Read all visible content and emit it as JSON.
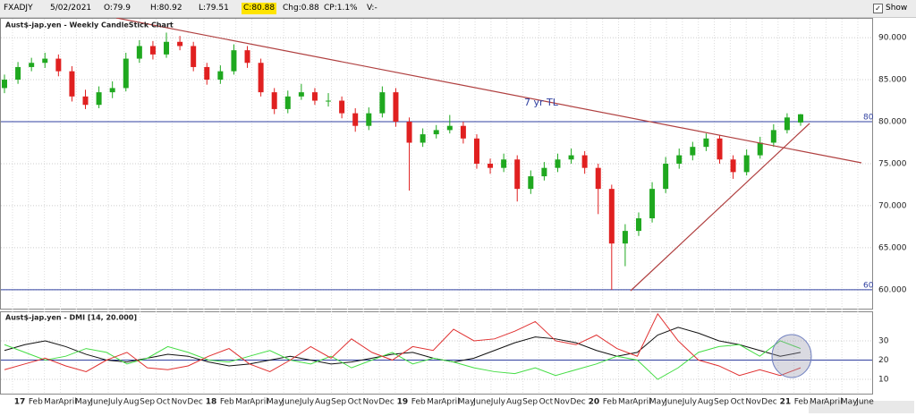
{
  "toolbar": {
    "symbol": "FXADJY",
    "date": "5/02/2021",
    "open": "O:79.9",
    "high": "H:80.92",
    "low": "L:79.51",
    "close": "C:80.88",
    "change": "Chg:0.88",
    "change_pct": "CP:1.1%",
    "volume": "V:-",
    "show_last": "Show Last"
  },
  "chart_data": [
    {
      "type": "candlestick",
      "title": "Aust$-jap.yen - Weekly CandleStick Chart",
      "annotation": "7 yr TL",
      "ylim": [
        57.75,
        92.35
      ],
      "yticks": [
        60,
        65,
        70,
        75,
        80,
        85,
        90
      ],
      "yticklabels": [
        "60.000",
        "65.000",
        "70.000",
        "75.000",
        "80.000",
        "85.000",
        "90.000"
      ],
      "levels": [
        80,
        60
      ],
      "up_color": "#1fa81f",
      "down_color": "#e02020",
      "level_color": "#3040a0",
      "candles": [
        [
          84.0,
          85.6,
          83.4,
          85.0
        ],
        [
          85.0,
          87.1,
          84.5,
          86.5
        ],
        [
          86.5,
          87.6,
          86.0,
          87.0
        ],
        [
          87.0,
          88.2,
          86.4,
          87.5
        ],
        [
          87.5,
          88.0,
          85.4,
          86.0
        ],
        [
          86.0,
          86.6,
          82.4,
          83.0
        ],
        [
          83.0,
          83.8,
          81.5,
          82.0
        ],
        [
          82.0,
          84.2,
          81.6,
          83.5
        ],
        [
          83.5,
          84.8,
          82.8,
          84.0
        ],
        [
          84.0,
          88.2,
          83.6,
          87.5
        ],
        [
          87.5,
          89.7,
          87.0,
          89.0
        ],
        [
          89.0,
          89.6,
          87.4,
          88.0
        ],
        [
          88.0,
          90.6,
          87.6,
          89.5
        ],
        [
          89.5,
          90.2,
          88.5,
          89.0
        ],
        [
          89.0,
          89.5,
          86.0,
          86.5
        ],
        [
          86.5,
          87.0,
          84.4,
          85.0
        ],
        [
          85.0,
          86.7,
          84.5,
          86.0
        ],
        [
          86.0,
          89.2,
          85.6,
          88.5
        ],
        [
          88.5,
          89.0,
          86.4,
          87.0
        ],
        [
          87.0,
          87.5,
          83.0,
          83.5
        ],
        [
          83.5,
          84.0,
          80.9,
          81.5
        ],
        [
          81.5,
          83.7,
          81.0,
          83.0
        ],
        [
          83.0,
          84.5,
          82.6,
          83.5
        ],
        [
          83.5,
          84.0,
          82.0,
          82.5
        ],
        [
          82.5,
          83.4,
          81.8,
          82.5
        ],
        [
          82.5,
          83.0,
          80.4,
          81.0
        ],
        [
          81.0,
          81.6,
          78.8,
          79.5
        ],
        [
          79.5,
          81.7,
          79.0,
          81.0
        ],
        [
          81.0,
          84.2,
          80.5,
          83.5
        ],
        [
          83.5,
          84.0,
          79.4,
          80.0
        ],
        [
          80.0,
          80.5,
          71.8,
          77.5
        ],
        [
          77.5,
          79.2,
          77.0,
          78.5
        ],
        [
          78.5,
          79.6,
          78.0,
          79.0
        ],
        [
          79.0,
          80.8,
          78.6,
          79.5
        ],
        [
          79.5,
          80.0,
          77.4,
          78.0
        ],
        [
          78.0,
          78.5,
          74.4,
          75.0
        ],
        [
          75.0,
          75.6,
          73.8,
          74.5
        ],
        [
          74.5,
          76.2,
          74.0,
          75.5
        ],
        [
          75.5,
          76.0,
          70.5,
          72.0
        ],
        [
          72.0,
          74.2,
          71.4,
          73.5
        ],
        [
          73.5,
          75.2,
          73.0,
          74.5
        ],
        [
          74.5,
          76.2,
          74.0,
          75.5
        ],
        [
          75.5,
          76.8,
          75.0,
          76.0
        ],
        [
          76.0,
          76.5,
          73.8,
          74.5
        ],
        [
          74.5,
          75.0,
          69.0,
          72.0
        ],
        [
          72.0,
          72.5,
          60.0,
          65.5
        ],
        [
          65.5,
          67.8,
          62.8,
          67.0
        ],
        [
          67.0,
          69.2,
          66.4,
          68.5
        ],
        [
          68.5,
          72.8,
          68.0,
          72.0
        ],
        [
          72.0,
          75.8,
          71.5,
          75.0
        ],
        [
          75.0,
          76.8,
          74.4,
          76.0
        ],
        [
          76.0,
          77.6,
          75.4,
          77.0
        ],
        [
          77.0,
          78.6,
          76.5,
          78.0
        ],
        [
          78.0,
          78.4,
          75.0,
          75.5
        ],
        [
          75.5,
          76.0,
          73.2,
          74.0
        ],
        [
          74.0,
          76.7,
          73.6,
          76.0
        ],
        [
          76.0,
          78.2,
          75.6,
          77.5
        ],
        [
          77.5,
          79.7,
          77.0,
          79.0
        ],
        [
          79.0,
          81.0,
          78.6,
          80.5
        ],
        [
          79.9,
          80.92,
          79.51,
          80.88
        ]
      ]
    },
    {
      "type": "line",
      "title": "Aust$-jap.yen - DMI [14, 20.000]",
      "ylim": [
        2.6,
        45.3
      ],
      "yticks": [
        10,
        20,
        30
      ],
      "level": 20,
      "series": [
        {
          "color": "#111111",
          "values": [
            25,
            28,
            30,
            27,
            23,
            20,
            19,
            21,
            23,
            22,
            19,
            17,
            18,
            20,
            22,
            20,
            18,
            19,
            21,
            23,
            24,
            21,
            19,
            21,
            25,
            29,
            32,
            31,
            29,
            25,
            22,
            24,
            33,
            37,
            34,
            30,
            28,
            25,
            22,
            24
          ]
        },
        {
          "color": "#44dd44",
          "values": [
            28,
            24,
            20,
            22,
            26,
            24,
            18,
            21,
            27,
            24,
            20,
            19,
            22,
            25,
            20,
            18,
            22,
            16,
            20,
            24,
            18,
            21,
            19,
            16,
            14,
            13,
            16,
            12,
            15,
            18,
            22,
            20,
            10,
            16,
            24,
            27,
            28,
            22,
            30,
            26
          ]
        },
        {
          "color": "#e03030",
          "values": [
            15,
            18,
            21,
            17,
            14,
            20,
            24,
            16,
            15,
            17,
            22,
            26,
            18,
            14,
            20,
            27,
            21,
            31,
            24,
            20,
            27,
            25,
            36,
            30,
            31,
            35,
            40,
            30,
            28,
            33,
            26,
            22,
            44,
            30,
            20,
            17,
            12,
            15,
            12,
            16
          ]
        }
      ]
    }
  ],
  "x_axis": {
    "categories": [
      "17",
      "Feb",
      "Mar",
      "April",
      "May",
      "June",
      "July",
      "Aug",
      "Sep",
      "Oct",
      "Nov",
      "Dec",
      "18",
      "Feb",
      "Mar",
      "April",
      "May",
      "June",
      "July",
      "Aug",
      "Sep",
      "Oct",
      "Nov",
      "Dec",
      "19",
      "Feb",
      "Mar",
      "April",
      "May",
      "June",
      "July",
      "Aug",
      "Sep",
      "Oct",
      "Nov",
      "Dec",
      "20",
      "Feb",
      "Mar",
      "April",
      "May",
      "June",
      "July",
      "Aug",
      "Sep",
      "Oct",
      "Nov",
      "Dec",
      "21",
      "Feb",
      "Mar",
      "April",
      "May",
      "June"
    ]
  }
}
